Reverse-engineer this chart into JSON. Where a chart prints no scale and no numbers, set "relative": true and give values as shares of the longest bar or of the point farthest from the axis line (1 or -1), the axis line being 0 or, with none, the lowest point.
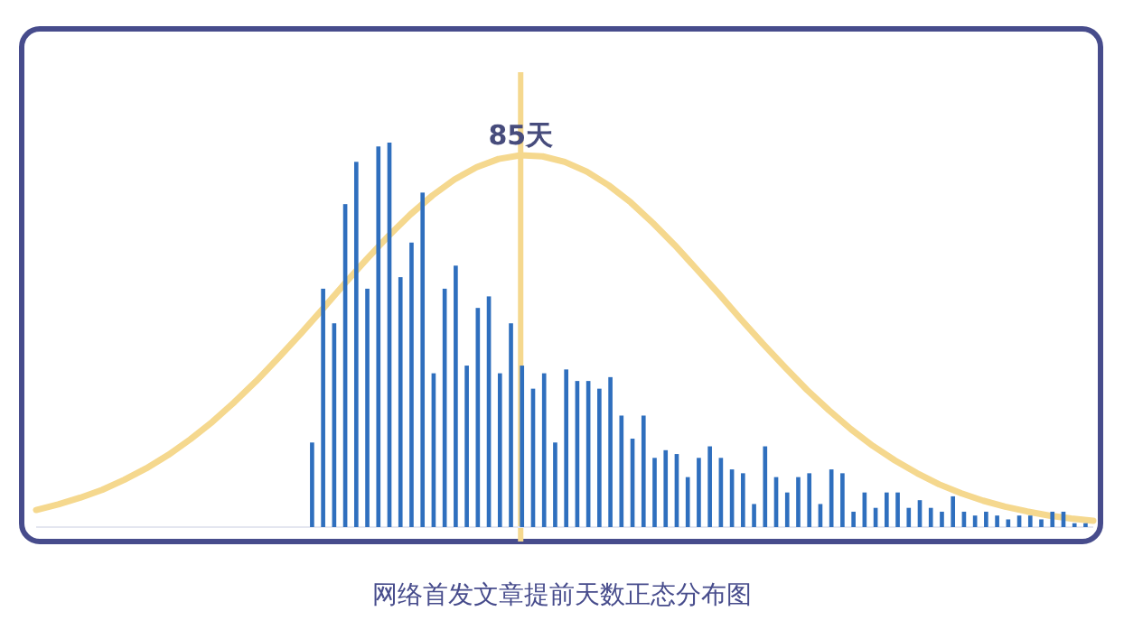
{
  "chart_data": [
    {
      "type": "bar",
      "title": "网络首发文章提前天数正态分布图",
      "relative": true,
      "color": "#2f6fbe",
      "categories": [
        null,
        null,
        null,
        null,
        null,
        null,
        null,
        null,
        null,
        null,
        null,
        null,
        null,
        null,
        null,
        null,
        null,
        null,
        null,
        null,
        null,
        null,
        null,
        null,
        null,
        null,
        null,
        null,
        null,
        null,
        null,
        null,
        null,
        null,
        null,
        null,
        null,
        null,
        null,
        null,
        null,
        null,
        null,
        null,
        null,
        null,
        null,
        null,
        null,
        null,
        null,
        null,
        null,
        null,
        null,
        null,
        null,
        null,
        null,
        null,
        null,
        null,
        null,
        null,
        null,
        null,
        null,
        null,
        null,
        null,
        null
      ],
      "values": [
        0.22,
        0.62,
        0.53,
        0.84,
        0.95,
        0.62,
        0.99,
        1,
        0.65,
        0.74,
        0.87,
        0.4,
        0.62,
        0.68,
        0.42,
        0.57,
        0.6,
        0.4,
        0.53,
        0.42,
        0.36,
        0.4,
        0.22,
        0.41,
        0.38,
        0.38,
        0.36,
        0.39,
        0.29,
        0.23,
        0.29,
        0.18,
        0.2,
        0.19,
        0.13,
        0.18,
        0.21,
        0.18,
        0.15,
        0.14,
        0.06,
        0.21,
        0.13,
        0.09,
        0.13,
        0.14,
        0.06,
        0.15,
        0.14,
        0.04,
        0.09,
        0.05,
        0.09,
        0.09,
        0.05,
        0.07,
        0.05,
        0.04,
        0.08,
        0.04,
        0.03,
        0.04,
        0.03,
        0.02,
        0.03,
        0.03,
        0.02,
        0.04,
        0.04,
        0.01,
        0.01
      ]
    },
    {
      "type": "line",
      "relative": true,
      "color": "#f5d88e",
      "annotations": [
        "85天"
      ],
      "categories": [
        null,
        null,
        null,
        null,
        null,
        null,
        null,
        null,
        null,
        null,
        null,
        null,
        null,
        null,
        null,
        null,
        null,
        null,
        null,
        null,
        null,
        null,
        null,
        null,
        null,
        null,
        null,
        null,
        null,
        null,
        null,
        null,
        null,
        null,
        null,
        null,
        null,
        null,
        null,
        null,
        null,
        null,
        null,
        null,
        null,
        null,
        null,
        null,
        null
      ],
      "values": [
        0.046,
        0.061,
        0.079,
        0.1,
        0.127,
        0.158,
        0.194,
        0.236,
        0.283,
        0.336,
        0.393,
        0.455,
        0.519,
        0.586,
        0.654,
        0.72,
        0.783,
        0.841,
        0.892,
        0.935,
        0.968,
        0.99,
        1,
        0.997,
        0.982,
        0.956,
        0.919,
        0.873,
        0.818,
        0.758,
        0.693,
        0.627,
        0.559,
        0.493,
        0.43,
        0.369,
        0.314,
        0.263,
        0.218,
        0.179,
        0.145,
        0.115,
        0.091,
        0.071,
        0.055,
        0.042,
        0.031,
        0.023,
        0.017
      ]
    }
  ]
}
